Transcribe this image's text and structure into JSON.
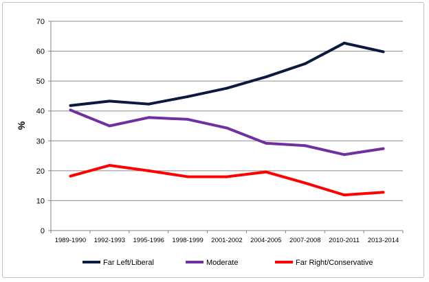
{
  "chart_data": {
    "type": "line",
    "title": "",
    "xlabel": "",
    "ylabel": "%",
    "ylim": [
      0,
      70
    ],
    "yticks": [
      "0",
      "10",
      "20",
      "30",
      "40",
      "50",
      "60",
      "70"
    ],
    "grid": true,
    "legend_position": "bottom",
    "categories": [
      "1989-1990",
      "1992-1993",
      "1995-1996",
      "1998-1999",
      "2001-2002",
      "2004-2005",
      "2007-2008",
      "2010-2011",
      "2013-2014"
    ],
    "series": [
      {
        "name": "Far Left/Liberal",
        "color": "#0b1a3f",
        "values": [
          41.8,
          43.3,
          42.3,
          44.8,
          47.6,
          51.4,
          55.8,
          62.7,
          59.8
        ]
      },
      {
        "name": "Moderate",
        "color": "#7030a0",
        "values": [
          40.3,
          35.0,
          37.8,
          37.2,
          34.3,
          29.2,
          28.4,
          25.4,
          27.4
        ]
      },
      {
        "name": "Far Right/Conservative",
        "color": "#ff0000",
        "values": [
          18.2,
          21.8,
          20.0,
          18.0,
          18.0,
          19.6,
          15.9,
          11.9,
          12.8
        ]
      }
    ]
  }
}
